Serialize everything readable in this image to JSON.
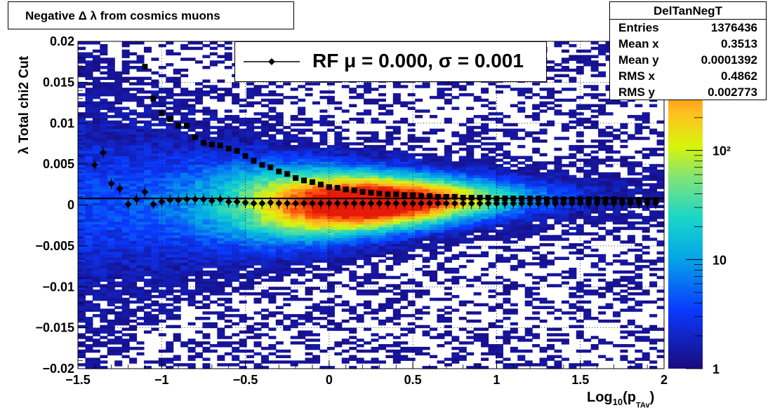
{
  "title_box": {
    "text": "Negative Δ λ from cosmics muons"
  },
  "stats_box": {
    "name": "DelTanNegT",
    "rows": [
      {
        "label": "Entries",
        "value": "1376436"
      },
      {
        "label": "Mean x",
        "value": "0.3513"
      },
      {
        "label": "Mean y",
        "value": "0.0001392"
      },
      {
        "label": "RMS x",
        "value": "0.4862"
      },
      {
        "label": "RMS y",
        "value": "0.002773"
      }
    ]
  },
  "legend": {
    "entry": "RF μ =  0.000, σ =   0.001"
  },
  "axes": {
    "y_title": "λ  Total chi2 Cut",
    "x_title_main": "Log",
    "x_title_sub": "10",
    "x_title_p": "(p",
    "x_title_psub": "TAv",
    "x_title_close": ")"
  },
  "colors": {
    "frame": "#000000",
    "marker": "#000000",
    "fit_line": "#000000"
  },
  "chart_data": {
    "type": "heatmap",
    "x_range": [
      -1.5,
      2
    ],
    "y_range": [
      -0.02,
      0.02
    ],
    "x_ticks": [
      -1.5,
      -1,
      -0.5,
      0,
      0.5,
      1,
      1.5,
      2
    ],
    "x_tick_labels": [
      "−1.5",
      "−1",
      "−0.5",
      "0",
      "0.5",
      "1",
      "1.5",
      "2"
    ],
    "y_ticks": [
      -0.02,
      -0.015,
      -0.01,
      -0.005,
      0,
      0.005,
      0.01,
      0.015,
      0.02
    ],
    "y_tick_labels": [
      "−0.02",
      "−0.015",
      "−0.01",
      "−0.005",
      "0",
      "0.005",
      "0.01",
      "0.015",
      "0.02"
    ],
    "grid": true,
    "z_scale": "log",
    "z_range": [
      1,
      1000
    ],
    "z_ticks": [
      1,
      10,
      100
    ],
    "z_tick_labels": [
      "1",
      "10",
      "10²"
    ],
    "fit_line_y": 0.0008,
    "series": [
      {
        "name": "RF",
        "marker": "diamond",
        "x": [
          -1.4,
          -1.35,
          -1.3,
          -1.25,
          -1.2,
          -1.15,
          -1.1,
          -1.05,
          -1.0,
          -0.95,
          -0.9,
          -0.85,
          -0.8,
          -0.75,
          -0.7,
          -0.65,
          -0.6,
          -0.55,
          -0.5,
          -0.45,
          -0.4,
          -0.35,
          -0.3,
          -0.25,
          -0.2,
          -0.15,
          -0.1,
          -0.05,
          0.0,
          0.05,
          0.1,
          0.15,
          0.2,
          0.25,
          0.3,
          0.35,
          0.4,
          0.45,
          0.5,
          0.55,
          0.6,
          0.65,
          0.7,
          0.75,
          0.8,
          0.85,
          0.9,
          0.95,
          1.0,
          1.05,
          1.1,
          1.15,
          1.2,
          1.25,
          1.3,
          1.35,
          1.4,
          1.45,
          1.5,
          1.55,
          1.6,
          1.65,
          1.7,
          1.75,
          1.8,
          1.85,
          1.9,
          1.95
        ],
        "y": [
          0.0049,
          0.0064,
          0.0026,
          0.002,
          0.0001,
          0.0007,
          0.0016,
          0.0001,
          0.0004,
          0.0006,
          0.0006,
          0.0007,
          0.0007,
          0.0007,
          0.0005,
          0.0007,
          0.0004,
          0.0004,
          0.0003,
          0.0002,
          0.0002,
          0.0003,
          0.0002,
          0.0002,
          0.0002,
          0.0002,
          0.0002,
          0.0002,
          0.0002,
          0.0002,
          0.0002,
          0.0002,
          0.0002,
          0.0002,
          0.0002,
          0.0002,
          0.0002,
          0.0002,
          0.0002,
          0.0002,
          0.0002,
          0.0002,
          0.0002,
          0.0002,
          0.0002,
          0.0002,
          0.0002,
          0.0002,
          0.0002,
          0.0002,
          0.0002,
          0.0002,
          0.0002,
          0.0002,
          0.0002,
          0.0002,
          0.0002,
          0.0002,
          0.0002,
          0.0002,
          0.0002,
          0.0002,
          0.0002,
          0.0002,
          0.0002,
          0.0002,
          0.0002,
          0.0002
        ]
      },
      {
        "name": "",
        "marker": "square",
        "x": [
          -1.1,
          -1.05,
          -1.0,
          -0.95,
          -0.9,
          -0.85,
          -0.8,
          -0.75,
          -0.7,
          -0.65,
          -0.6,
          -0.55,
          -0.5,
          -0.45,
          -0.4,
          -0.35,
          -0.3,
          -0.25,
          -0.2,
          -0.15,
          -0.1,
          -0.05,
          0.0,
          0.05,
          0.1,
          0.15,
          0.2,
          0.25,
          0.3,
          0.35,
          0.4,
          0.45,
          0.5,
          0.55,
          0.6,
          0.65,
          0.7,
          0.75,
          0.8,
          0.85,
          0.9,
          0.95,
          1.0,
          1.05,
          1.1,
          1.15,
          1.2,
          1.25,
          1.3,
          1.35,
          1.4,
          1.45,
          1.5,
          1.55,
          1.6,
          1.65,
          1.7,
          1.75,
          1.8,
          1.85,
          1.9,
          1.95
        ],
        "y": [
          0.0169,
          0.013,
          0.0112,
          0.0105,
          0.0097,
          0.0097,
          0.0083,
          0.0076,
          0.0074,
          0.0073,
          0.0069,
          0.0066,
          0.006,
          0.0054,
          0.0049,
          0.0046,
          0.0041,
          0.0038,
          0.0033,
          0.003,
          0.0028,
          0.0025,
          0.0022,
          0.0021,
          0.0019,
          0.0018,
          0.0016,
          0.0015,
          0.0014,
          0.0013,
          0.0013,
          0.0012,
          0.0012,
          0.0011,
          0.0011,
          0.001,
          0.001,
          0.001,
          0.0009,
          0.0009,
          0.0009,
          0.0009,
          0.0008,
          0.0008,
          0.0008,
          0.0008,
          0.0008,
          0.0008,
          0.0007,
          0.0007,
          0.0007,
          0.0007,
          0.0007,
          0.0007,
          0.0007,
          0.0007,
          0.0007,
          0.0006,
          0.0006,
          0.0006,
          0.0006,
          0.0006
        ]
      }
    ]
  }
}
